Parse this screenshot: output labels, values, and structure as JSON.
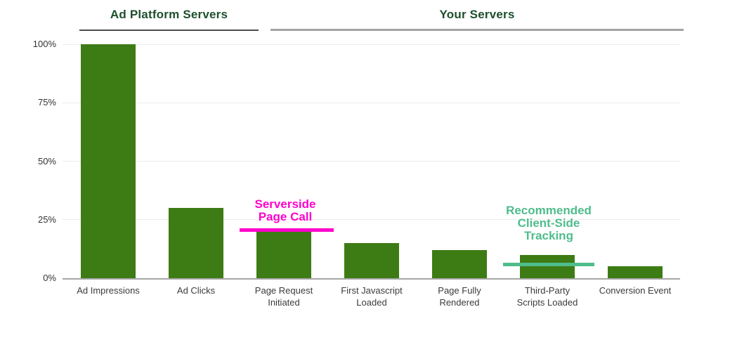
{
  "groups": [
    {
      "label": "Ad Platform Servers"
    },
    {
      "label": "Your Servers"
    }
  ],
  "chart_data": {
    "type": "bar",
    "title": "",
    "categories": [
      "Ad Impressions",
      "Ad Clicks",
      "Page Request\nInitiated",
      "First Javascript\nLoaded",
      "Page Fully\nRendered",
      "Third-Party\nScripts Loaded",
      "Conversion Event"
    ],
    "values": [
      100,
      30,
      20,
      15,
      12,
      10,
      5
    ],
    "yticks": [
      "100%",
      "75%",
      "50%",
      "25%",
      "0%"
    ],
    "ylim": [
      0,
      100
    ],
    "grid": "horizontal",
    "bar_color": "#3d7b14",
    "group_spans": [
      {
        "label": "Ad Platform Servers",
        "categories": [
          "Ad Impressions",
          "Ad Clicks"
        ]
      },
      {
        "label": "Your Servers",
        "categories": [
          "Page Request Initiated",
          "First Javascript Loaded",
          "Page Fully Rendered",
          "Third-Party Scripts Loaded",
          "Conversion Event"
        ]
      }
    ]
  },
  "annotations": [
    {
      "text": "Serverside\nPage Call",
      "color": "#ff00cc",
      "line_color": "#ff00cc",
      "marker_value": 20.5
    },
    {
      "text": "Recommended\nClient-Side\nTracking",
      "color": "#4fbc8c",
      "line_color": "#4fbc8c",
      "marker_value": 6
    }
  ]
}
